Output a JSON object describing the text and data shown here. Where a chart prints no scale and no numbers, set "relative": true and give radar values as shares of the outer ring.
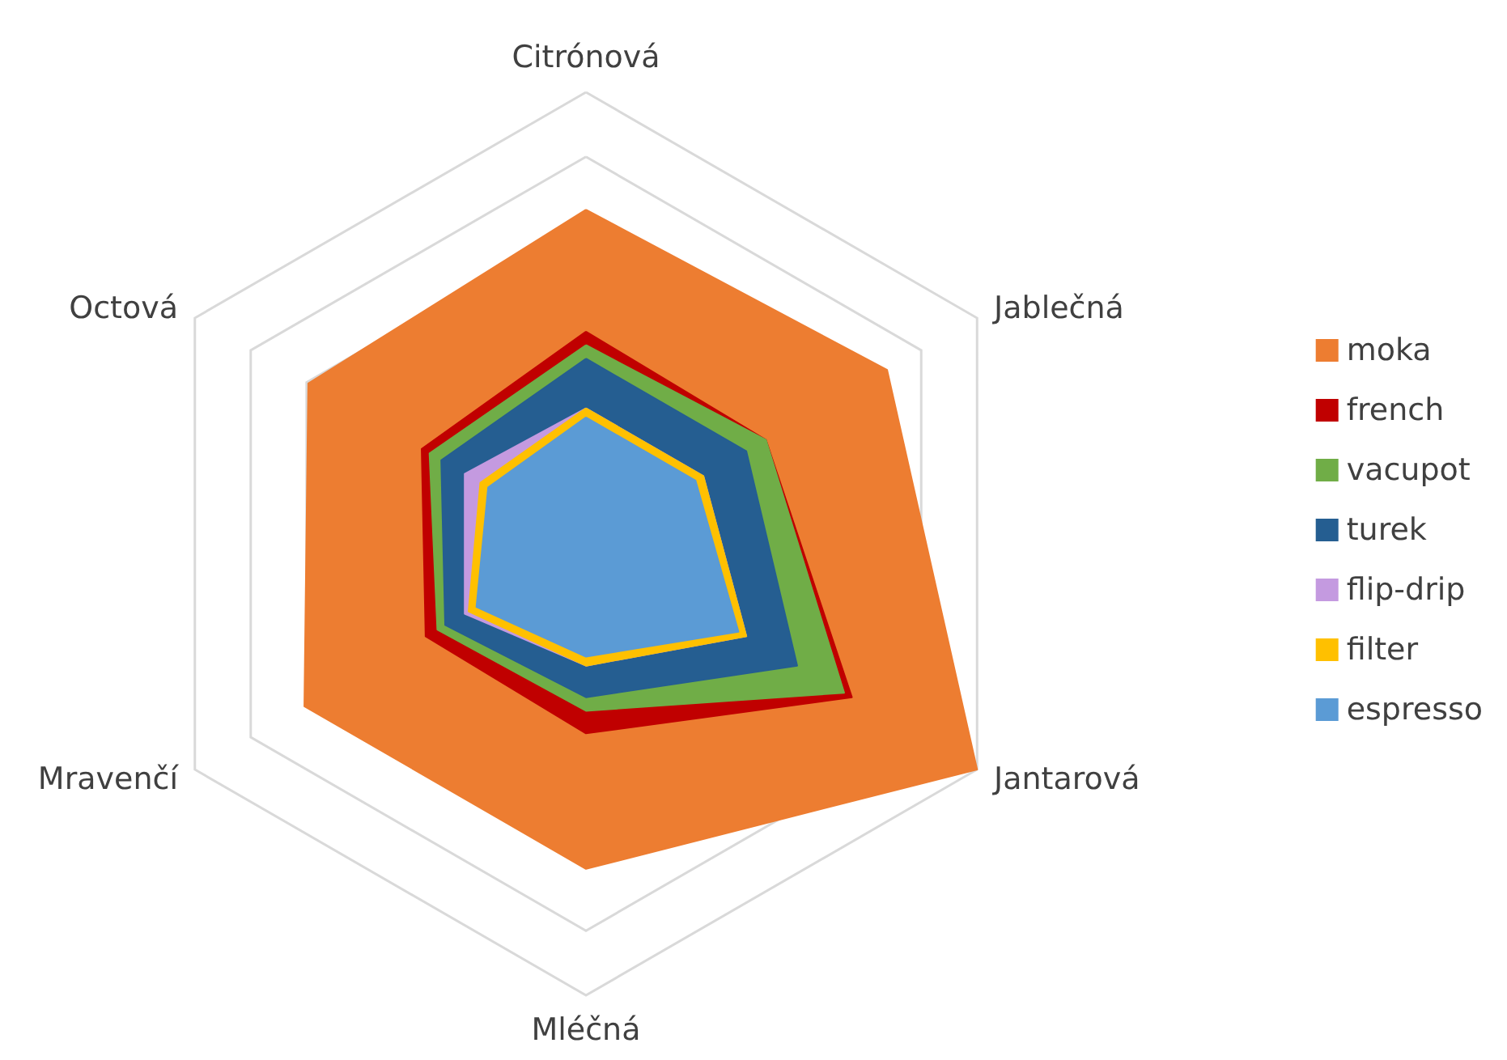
{
  "chart_data": {
    "type": "radar",
    "relative": true,
    "legend": "right",
    "categories": [
      "Citrónová",
      "Jablečná",
      "Jantarová",
      "Mléčná",
      "Mravenčí",
      "Octová"
    ],
    "series": [
      {
        "name": "moka",
        "color": "#ed7d31",
        "values": [
          0.74,
          0.77,
          1,
          0.72,
          0.72,
          0.71
        ]
      },
      {
        "name": "french",
        "color": "#c00000",
        "values": [
          0.47,
          0.46,
          0.68,
          0.42,
          0.41,
          0.42
        ]
      },
      {
        "name": "vacupot",
        "color": "#70ad47",
        "values": [
          0.44,
          0.46,
          0.66,
          0.37,
          0.38,
          0.4
        ]
      },
      {
        "name": "turek",
        "color": "#255e91",
        "values": [
          0.41,
          0.41,
          0.54,
          0.34,
          0.36,
          0.37
        ]
      },
      {
        "name": "flip-drip",
        "color": "#c49ae0",
        "values": [
          0.3,
          0.3,
          0.41,
          0.27,
          0.31,
          0.31
        ]
      },
      {
        "name": "filter",
        "color": "#ffc000",
        "values": [
          0.3,
          0.3,
          0.41,
          0.27,
          0.3,
          0.27
        ]
      },
      {
        "name": "espresso",
        "color": "#5b9bd5",
        "values": [
          0.28,
          0.28,
          0.39,
          0.25,
          0.28,
          0.25
        ]
      }
    ]
  }
}
